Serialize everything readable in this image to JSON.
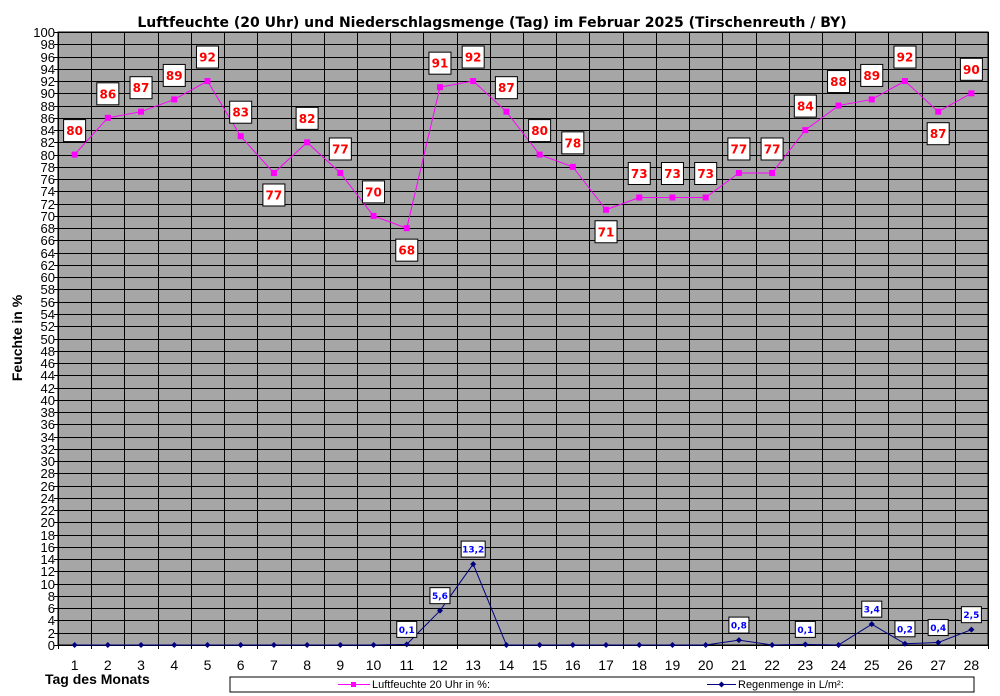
{
  "chart_data": {
    "type": "line",
    "title": "Luftfeuchte (20 Uhr) und Niederschlagsmenge (Tag) im Februar 2025 (Tirschenreuth / BY)",
    "xlabel": "Tag des Monats",
    "ylabel": "Feuchte in %",
    "ylim": [
      0,
      100
    ],
    "ytick_step": 2,
    "grid": true,
    "legend_position": "bottom",
    "categories": [
      "1",
      "2",
      "3",
      "4",
      "5",
      "6",
      "7",
      "8",
      "9",
      "10",
      "11",
      "12",
      "13",
      "14",
      "15",
      "16",
      "17",
      "18",
      "19",
      "20",
      "21",
      "22",
      "23",
      "24",
      "25",
      "26",
      "27",
      "28"
    ],
    "series": [
      {
        "name": "Luftfeuchte 20 Uhr in %:",
        "color": "#ff00ff",
        "label_color": "#ff0000",
        "marker": "square",
        "values": [
          80,
          86,
          87,
          89,
          92,
          83,
          77,
          82,
          77,
          70,
          68,
          91,
          92,
          87,
          80,
          78,
          71,
          73,
          73,
          73,
          77,
          77,
          84,
          88,
          89,
          92,
          87,
          90
        ],
        "labels": [
          "80",
          "86",
          "87",
          "89",
          "92",
          "83",
          "77",
          "82",
          "77",
          "70",
          "68",
          "91",
          "92",
          "87",
          "80",
          "78",
          "71",
          "73",
          "73",
          "73",
          "77",
          "77",
          "84",
          "88",
          "89",
          "92",
          "87",
          "90"
        ]
      },
      {
        "name": "Regenmenge in L/m²:",
        "color": "#000080",
        "label_color": "#0000ff",
        "marker": "diamond",
        "values": [
          0,
          0,
          0,
          0,
          0,
          0,
          0,
          0,
          0,
          0,
          0.1,
          5.6,
          13.2,
          0,
          0,
          0,
          0,
          0,
          0,
          0,
          0.8,
          0,
          0.1,
          0,
          3.4,
          0.2,
          0.4,
          2.5
        ],
        "labels": [
          null,
          null,
          null,
          null,
          null,
          null,
          null,
          null,
          null,
          null,
          "0,1",
          "5,6",
          "13,2",
          null,
          null,
          null,
          null,
          null,
          null,
          null,
          "0,8",
          null,
          "0,1",
          null,
          "3,4",
          "0,2",
          "0,4",
          "2,5"
        ]
      }
    ],
    "plot_colors": {
      "background": "#a6a6a6",
      "grid": "#000000"
    }
  }
}
